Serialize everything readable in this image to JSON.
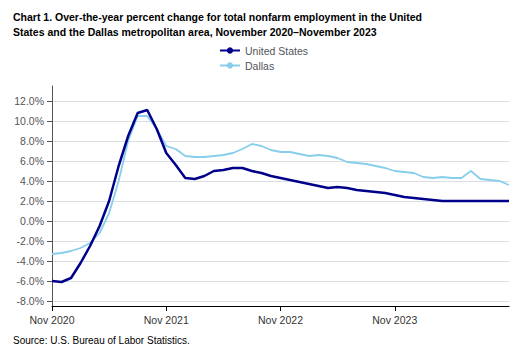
{
  "chart_data": {
    "type": "line",
    "title": "Chart 1. Over-the-year percent change for total nonfarm employment in the United",
    "subtitle": "States and the Dallas metropolitan area, November 2020–November 2023",
    "annotations": [
      "Source: U.S. Bureau of Labor Statistics."
    ],
    "categories": [
      "Nov 2020",
      null,
      null,
      null,
      null,
      null,
      null,
      null,
      null,
      null,
      null,
      null,
      "Nov 2021",
      null,
      null,
      null,
      null,
      null,
      null,
      null,
      null,
      null,
      null,
      null,
      "Nov 2022",
      null,
      null,
      null,
      null,
      null,
      null,
      null,
      null,
      null,
      null,
      null,
      "Nov 2023",
      null,
      null,
      null,
      null,
      null,
      null,
      null,
      null,
      null,
      null,
      null,
      null
    ],
    "series": [
      {
        "name": "United States",
        "color": "#00008B",
        "values": [
          -6.0,
          -6.1,
          -5.7,
          -4.2,
          -2.5,
          -0.5,
          2.0,
          5.5,
          8.5,
          10.8,
          11.1,
          9.2,
          6.8,
          5.6,
          4.3,
          4.2,
          4.5,
          5.0,
          5.1,
          5.3,
          5.3,
          5.0,
          4.8,
          4.5,
          4.3,
          4.1,
          3.9,
          3.7,
          3.5,
          3.3,
          3.4,
          3.3,
          3.1,
          3.0,
          2.9,
          2.8,
          2.6,
          2.4,
          2.3,
          2.2,
          2.1,
          2.0,
          2.0,
          2.0,
          2.0,
          2.0,
          2.0,
          2.0,
          2.0
        ]
      },
      {
        "name": "Dallas",
        "color": "#87CEEB",
        "values": [
          -3.3,
          -3.2,
          -3.0,
          -2.7,
          -2.2,
          -1.2,
          0.8,
          4.0,
          8.0,
          10.5,
          10.5,
          9.2,
          7.5,
          7.2,
          6.5,
          6.4,
          6.4,
          6.5,
          6.6,
          6.8,
          7.2,
          7.7,
          7.5,
          7.1,
          6.9,
          6.9,
          6.7,
          6.5,
          6.6,
          6.5,
          6.3,
          5.9,
          5.8,
          5.7,
          5.5,
          5.3,
          5.0,
          4.9,
          4.8,
          4.4,
          4.3,
          4.4,
          4.3,
          4.3,
          5.0,
          4.2,
          4.1,
          4.0,
          3.6
        ]
      }
    ],
    "ylim": [
      -8.5,
      13.5
    ],
    "yticks": [
      {
        "value": -8,
        "label": "-8.0%"
      },
      {
        "value": -6,
        "label": "-6.0%"
      },
      {
        "value": -4,
        "label": "-4.0%"
      },
      {
        "value": -2,
        "label": "-2.0%"
      },
      {
        "value": 0,
        "label": "0.0%"
      },
      {
        "value": 2,
        "label": "2.0%"
      },
      {
        "value": 4,
        "label": "4.0%"
      },
      {
        "value": 6,
        "label": "6.0%"
      },
      {
        "value": 8,
        "label": "8.0%"
      },
      {
        "value": 10,
        "label": "10.0%"
      },
      {
        "value": 12,
        "label": "12.0%"
      }
    ],
    "grid": true,
    "legend": "top"
  }
}
